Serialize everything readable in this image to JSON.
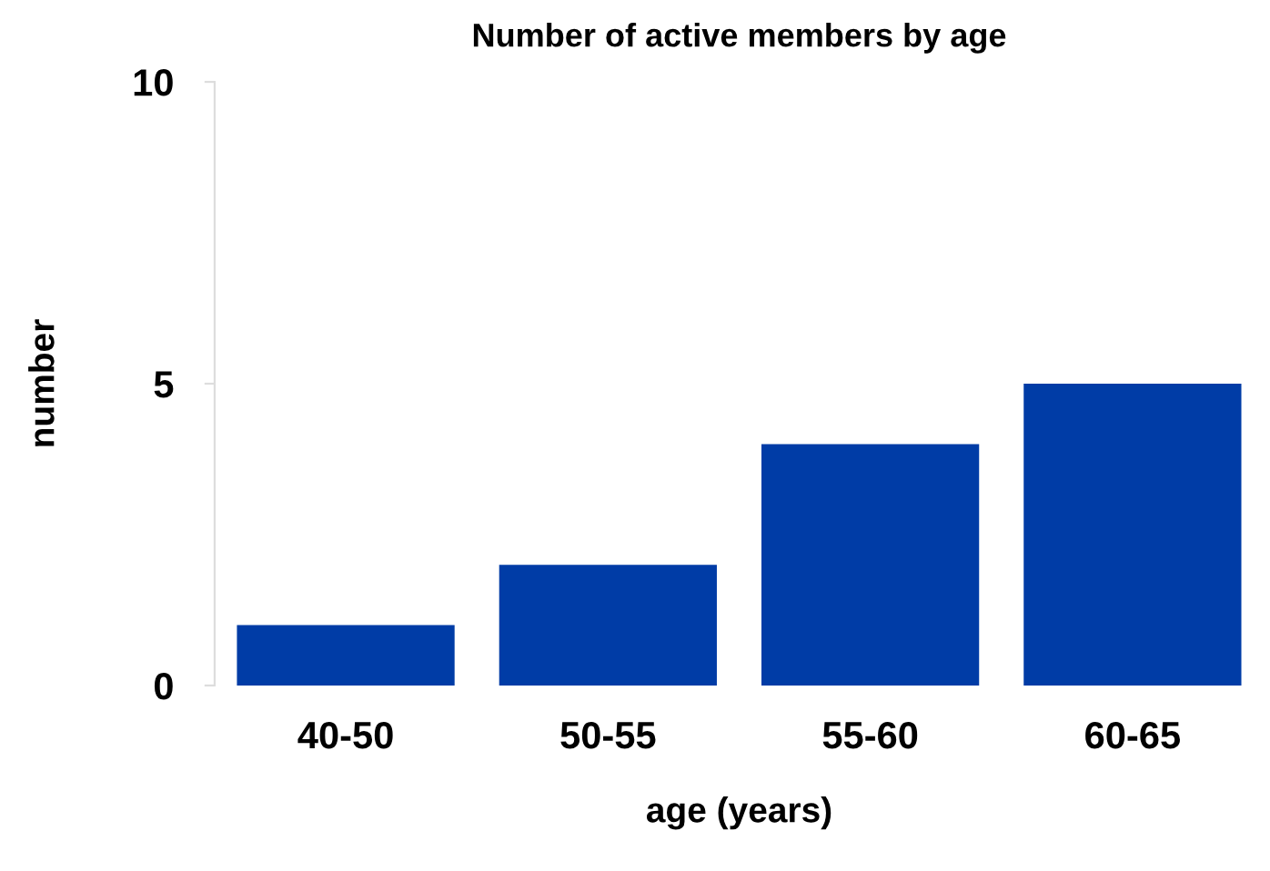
{
  "chart_data": {
    "type": "bar",
    "title": "Number of active members by age",
    "xlabel": "age (years)",
    "ylabel": "number",
    "categories": [
      "40-50",
      "50-55",
      "55-60",
      "60-65"
    ],
    "values": [
      1,
      2,
      4,
      5
    ],
    "color": "#003ca6",
    "ylim": [
      0,
      10
    ],
    "yticks": [
      0,
      5,
      10
    ],
    "grid": false
  }
}
